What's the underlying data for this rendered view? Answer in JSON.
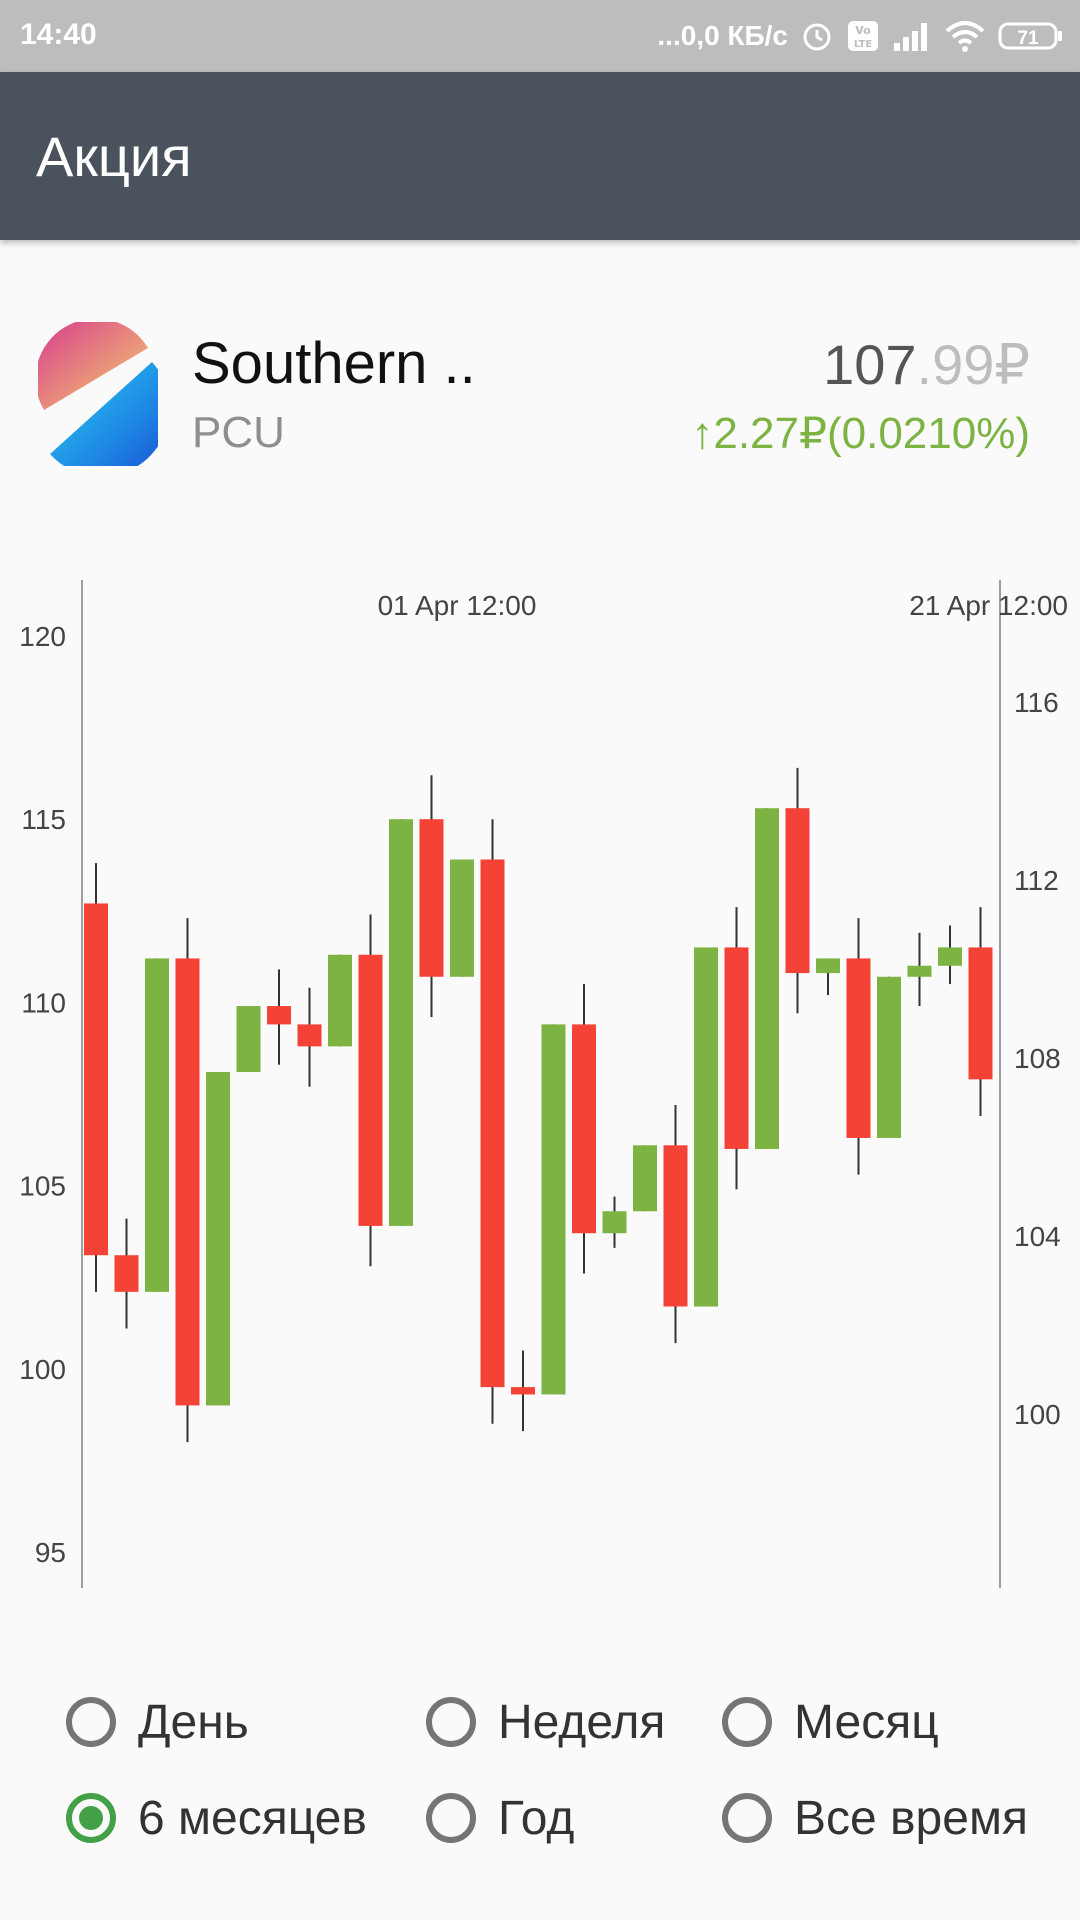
{
  "status_bar": {
    "time": "14:40",
    "net_speed": "...0,0 КБ/с",
    "battery": "71",
    "icons": [
      "alarm-icon",
      "volte-icon",
      "signal-icon",
      "wifi-icon",
      "battery-icon"
    ]
  },
  "app_bar": {
    "title": "Акция"
  },
  "stock": {
    "name": "Southern ..",
    "ticker": "PCU",
    "price_main": "107",
    "price_fraction": ".99₽",
    "change": "↑2.27₽(0.0210%)",
    "change_color": "#7cb342"
  },
  "chart_data": {
    "type": "candlestick",
    "time_labels": [
      "01 Apr 12:00",
      "21 Apr 12:00"
    ],
    "left_axis": {
      "ticks": [
        120,
        115,
        110,
        105,
        100,
        95
      ],
      "range": [
        95,
        120
      ]
    },
    "right_axis": {
      "ticks": [
        116,
        112,
        108,
        104,
        100
      ]
    },
    "up_color": "#7cb342",
    "down_color": "#f44336",
    "candles": [
      {
        "open": 112.7,
        "close": 103.1,
        "high": 113.8,
        "low": 102.1
      },
      {
        "open": 103.1,
        "close": 102.1,
        "high": 104.1,
        "low": 101.1
      },
      {
        "open": 102.1,
        "close": 111.2,
        "high": 111.2,
        "low": 102.1
      },
      {
        "open": 111.2,
        "close": 99.0,
        "high": 112.3,
        "low": 98.0
      },
      {
        "open": 99.0,
        "close": 108.1,
        "high": 108.1,
        "low": 99.0
      },
      {
        "open": 108.1,
        "close": 109.9,
        "high": 109.9,
        "low": 108.1
      },
      {
        "open": 109.9,
        "close": 109.4,
        "high": 110.9,
        "low": 108.3
      },
      {
        "open": 109.4,
        "close": 108.8,
        "high": 110.4,
        "low": 107.7
      },
      {
        "open": 108.8,
        "close": 111.3,
        "high": 111.3,
        "low": 108.8
      },
      {
        "open": 111.3,
        "close": 103.9,
        "high": 112.4,
        "low": 102.8
      },
      {
        "open": 103.9,
        "close": 115.0,
        "high": 115.0,
        "low": 103.9
      },
      {
        "open": 115.0,
        "close": 110.7,
        "high": 116.2,
        "low": 109.6
      },
      {
        "open": 110.7,
        "close": 113.9,
        "high": 113.9,
        "low": 110.7
      },
      {
        "open": 113.9,
        "close": 99.5,
        "high": 115.0,
        "low": 98.5
      },
      {
        "open": 99.5,
        "close": 99.3,
        "high": 100.5,
        "low": 98.3
      },
      {
        "open": 99.3,
        "close": 109.4,
        "high": 109.4,
        "low": 99.3
      },
      {
        "open": 109.4,
        "close": 103.7,
        "high": 110.5,
        "low": 102.6
      },
      {
        "open": 103.7,
        "close": 104.3,
        "high": 104.7,
        "low": 103.3
      },
      {
        "open": 104.3,
        "close": 106.1,
        "high": 106.1,
        "low": 104.3
      },
      {
        "open": 106.1,
        "close": 101.7,
        "high": 107.2,
        "low": 100.7
      },
      {
        "open": 101.7,
        "close": 111.5,
        "high": 111.5,
        "low": 101.7
      },
      {
        "open": 111.5,
        "close": 106.0,
        "high": 112.6,
        "low": 104.9
      },
      {
        "open": 106.0,
        "close": 115.3,
        "high": 115.3,
        "low": 106.0
      },
      {
        "open": 115.3,
        "close": 110.8,
        "high": 116.4,
        "low": 109.7
      },
      {
        "open": 110.8,
        "close": 111.2,
        "high": 111.2,
        "low": 110.2
      },
      {
        "open": 111.2,
        "close": 106.3,
        "high": 112.3,
        "low": 105.3
      },
      {
        "open": 106.3,
        "close": 110.7,
        "high": 110.7,
        "low": 106.3
      },
      {
        "open": 110.7,
        "close": 111.0,
        "high": 111.9,
        "low": 109.9
      },
      {
        "open": 111.0,
        "close": 111.5,
        "high": 112.1,
        "low": 110.5
      },
      {
        "open": 111.5,
        "close": 107.9,
        "high": 112.6,
        "low": 106.9
      }
    ]
  },
  "periods": {
    "options": [
      {
        "label": "День",
        "checked": false
      },
      {
        "label": "Неделя",
        "checked": false
      },
      {
        "label": "Месяц",
        "checked": false
      },
      {
        "label": "6 месяцев",
        "checked": true
      },
      {
        "label": "Год",
        "checked": false
      },
      {
        "label": "Все время",
        "checked": false
      }
    ]
  }
}
